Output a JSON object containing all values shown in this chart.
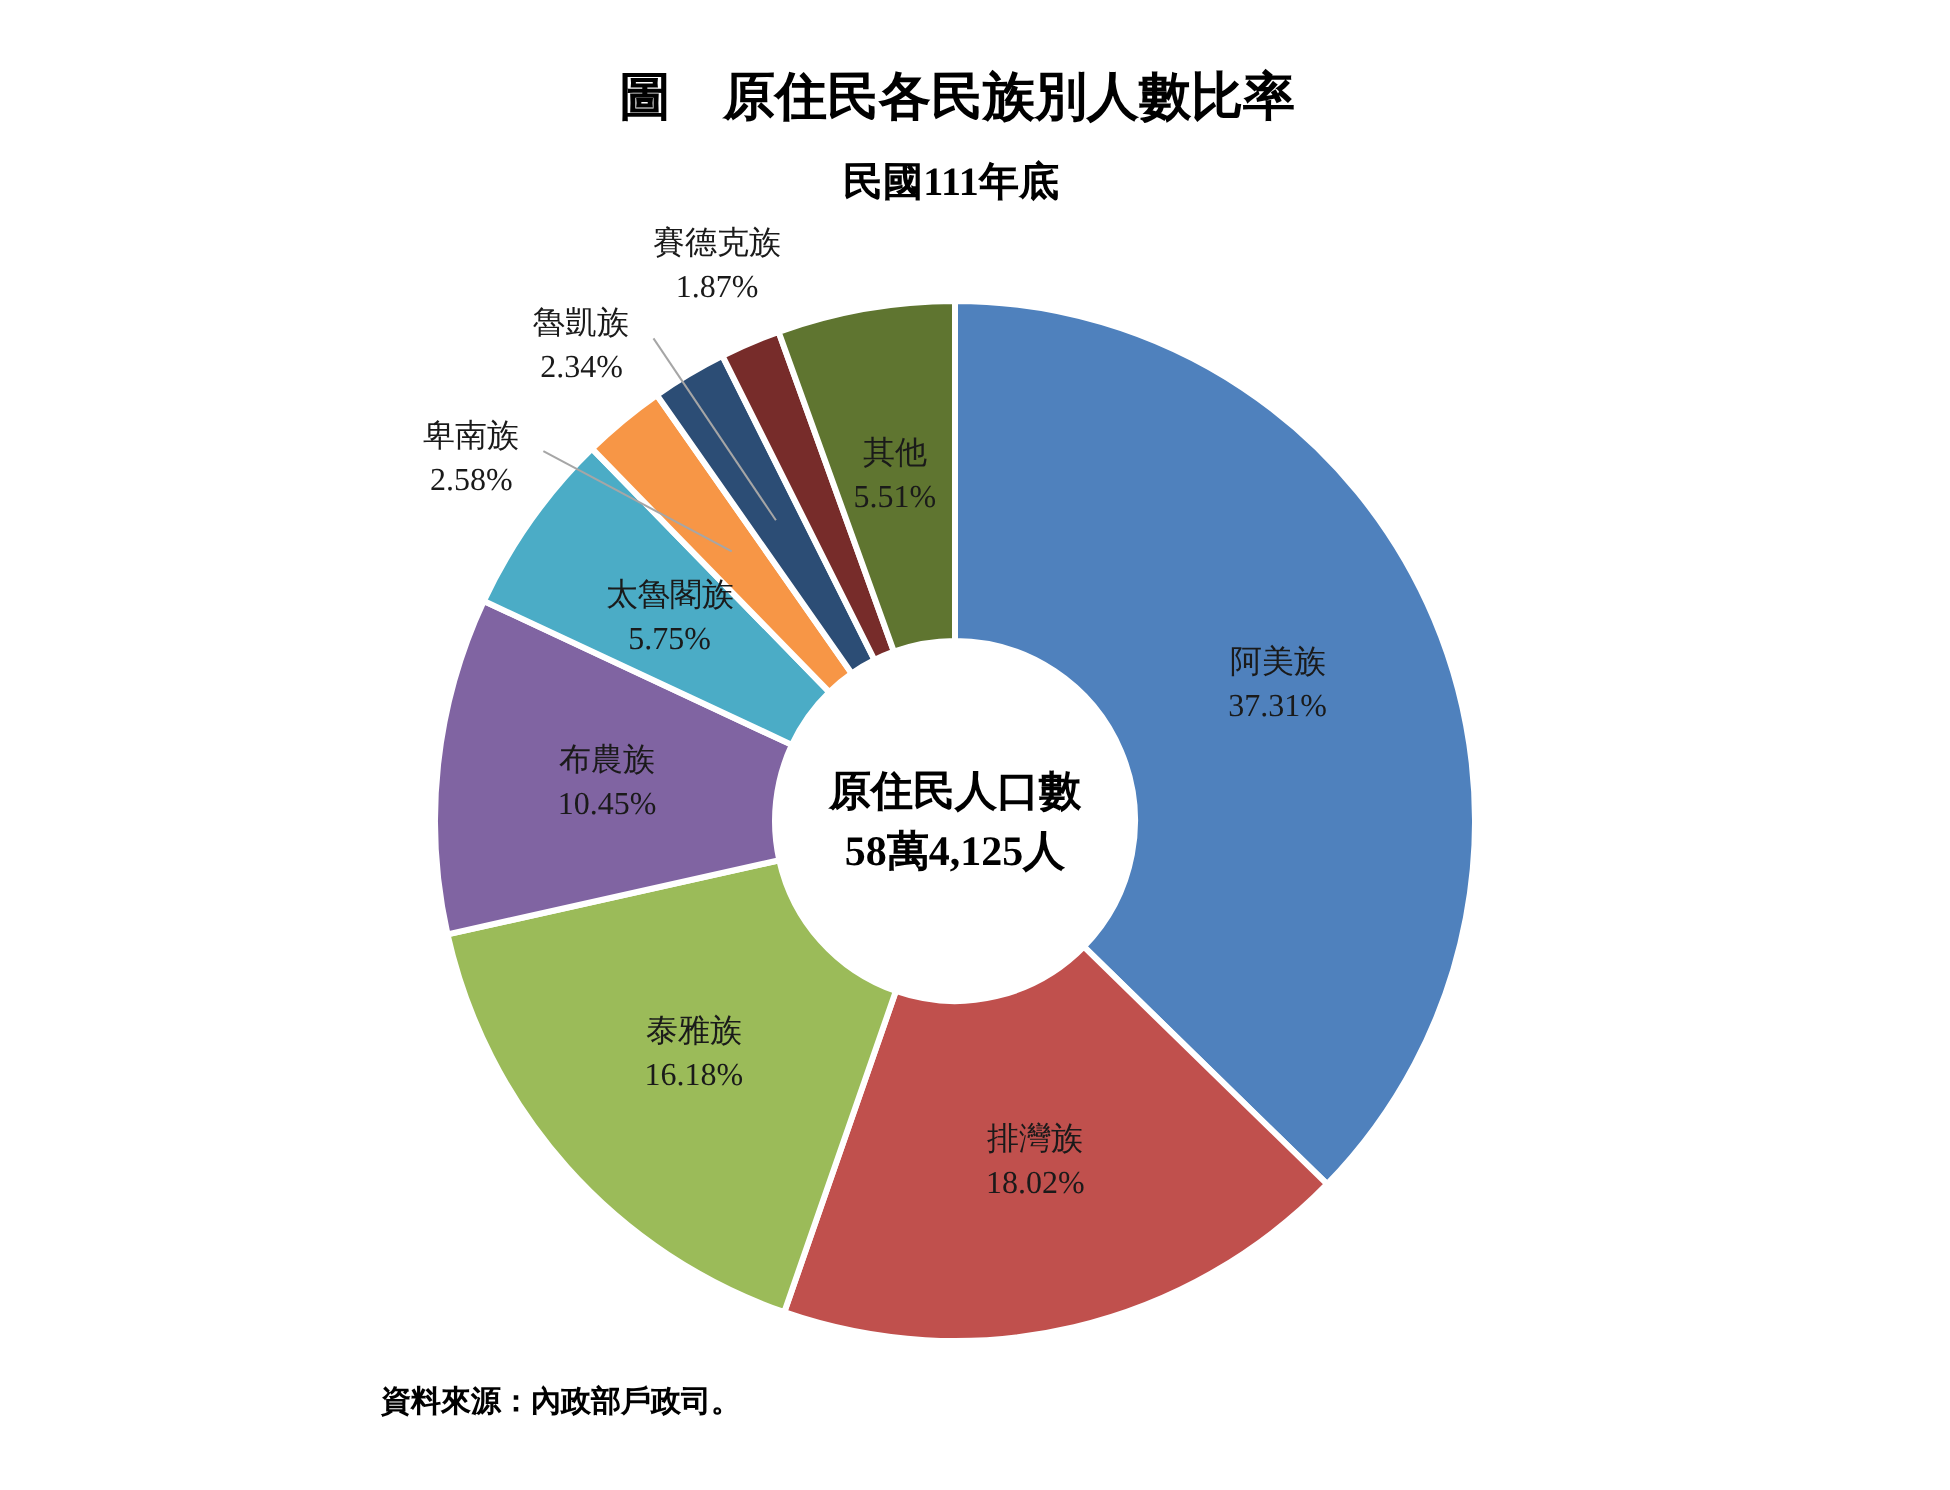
{
  "chart_data": {
    "type": "donut",
    "title": "圖　原住民各民族別人數比率",
    "subtitle": "民國111年底",
    "categories": [
      "阿美族",
      "排灣族",
      "泰雅族",
      "布農族",
      "太魯閣族",
      "卑南族",
      "魯凱族",
      "賽德克族",
      "其他"
    ],
    "values": [
      37.31,
      18.02,
      16.18,
      10.45,
      5.75,
      2.58,
      2.34,
      1.87,
      5.51
    ],
    "colors": [
      "#4f81bd",
      "#c0504d",
      "#9bbb59",
      "#8064a2",
      "#4bacc6",
      "#f79646",
      "#2c4d75",
      "#772c2a",
      "#5f7530"
    ],
    "value_labels": [
      "37.31%",
      "18.02%",
      "16.18%",
      "10.45%",
      "5.75%",
      "2.58%",
      "2.34%",
      "1.87%",
      "5.51%"
    ],
    "annotations": [
      "原住民人口數",
      "58萬4,125人",
      "資料來源：內政部戶政司。"
    ]
  }
}
